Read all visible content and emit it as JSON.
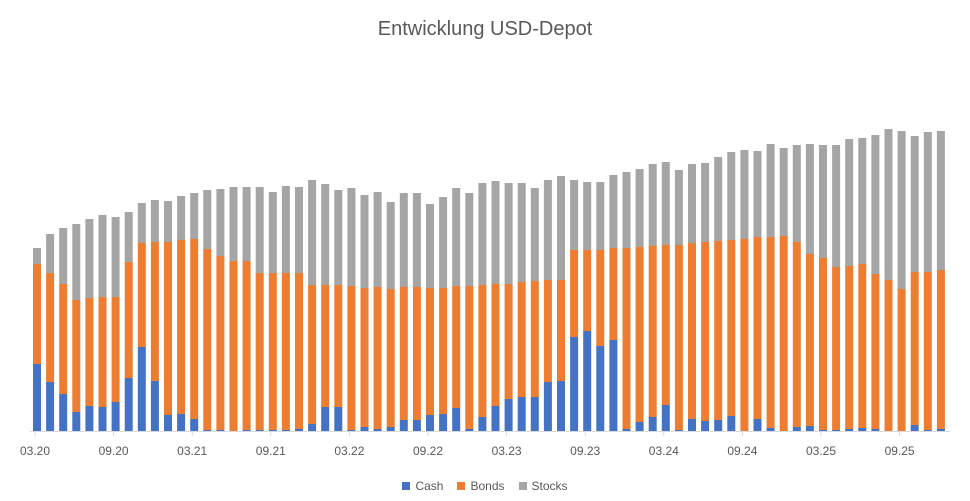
{
  "chart_data": {
    "type": "bar",
    "stacked": true,
    "title": "Entwicklung USD-Depot",
    "xlabel": "",
    "ylabel": "",
    "ylim": [
      0,
      320
    ],
    "y_axis_labels_shown": false,
    "grid": false,
    "legend_position": "bottom",
    "tick_labels": [
      "03.20",
      "09.20",
      "03.21",
      "09.21",
      "03.22",
      "09.22",
      "03.23",
      "09.23",
      "03.24",
      "09.24",
      "03.25",
      "09.25"
    ],
    "categories": [
      "03.20",
      "04.20",
      "05.20",
      "06.20",
      "07.20",
      "08.20",
      "09.20",
      "10.20",
      "11.20",
      "12.20",
      "01.21",
      "02.21",
      "03.21",
      "04.21",
      "05.21",
      "06.21",
      "07.21",
      "08.21",
      "09.21",
      "10.21",
      "11.21",
      "12.21",
      "01.22",
      "02.22",
      "03.22",
      "04.22",
      "05.22",
      "06.22",
      "07.22",
      "08.22",
      "09.22",
      "10.22",
      "11.22",
      "12.22",
      "01.23",
      "02.23",
      "03.23",
      "04.23",
      "05.23",
      "06.23",
      "07.23",
      "08.23",
      "09.23",
      "10.23",
      "11.23",
      "12.23",
      "01.24",
      "02.24",
      "03.24",
      "04.24",
      "05.24",
      "06.24",
      "07.24",
      "08.24",
      "09.24",
      "10.24",
      "11.24",
      "12.24",
      "01.25",
      "02.25",
      "03.25",
      "04.25",
      "05.25",
      "06.25",
      "07.25",
      "08.25",
      "09.25",
      "10.25",
      "11.25",
      "12.25"
    ],
    "series": [
      {
        "name": "Cash",
        "color": "#4472C4",
        "values": [
          67,
          49,
          37,
          19,
          25,
          24,
          29,
          53,
          84,
          50,
          16,
          17,
          12,
          1,
          1,
          0,
          1,
          1,
          1,
          1,
          2,
          7,
          24,
          24,
          1,
          4,
          2,
          4,
          11,
          11,
          16,
          17,
          23,
          2,
          14,
          25,
          32,
          34,
          34,
          49,
          50,
          94,
          100,
          85,
          91,
          2,
          9,
          14,
          26,
          1,
          12,
          10,
          11,
          15,
          0,
          12,
          3,
          0,
          4,
          5,
          1,
          1,
          2,
          3,
          2,
          0,
          0,
          6,
          1,
          2
        ]
      },
      {
        "name": "Bonds",
        "color": "#ED7D31",
        "values": [
          100,
          109,
          110,
          112,
          108,
          110,
          105,
          116,
          104,
          139,
          173,
          174,
          180,
          181,
          174,
          170,
          169,
          157,
          157,
          157,
          156,
          139,
          122,
          122,
          144,
          139,
          142,
          138,
          133,
          133,
          127,
          126,
          122,
          143,
          132,
          122,
          115,
          115,
          116,
          102,
          101,
          87,
          81,
          96,
          92,
          181,
          175,
          171,
          160,
          185,
          176,
          179,
          179,
          176,
          192,
          182,
          191,
          195,
          185,
          172,
          172,
          163,
          163,
          164,
          155,
          151,
          142,
          153,
          158,
          159
        ]
      },
      {
        "name": "Stocks",
        "color": "#A5A5A5",
        "values": [
          16,
          39,
          56,
          76,
          79,
          82,
          80,
          50,
          40,
          42,
          41,
          44,
          46,
          59,
          67,
          74,
          74,
          86,
          81,
          87,
          86,
          105,
          101,
          95,
          98,
          93,
          95,
          87,
          94,
          94,
          84,
          91,
          98,
          93,
          102,
          103,
          101,
          99,
          93,
          100,
          104,
          70,
          68,
          68,
          73,
          76,
          78,
          82,
          83,
          75,
          79,
          79,
          84,
          88,
          89,
          86,
          93,
          88,
          97,
          110,
          113,
          122,
          127,
          126,
          139,
          151,
          158,
          136,
          140,
          139
        ]
      }
    ]
  }
}
